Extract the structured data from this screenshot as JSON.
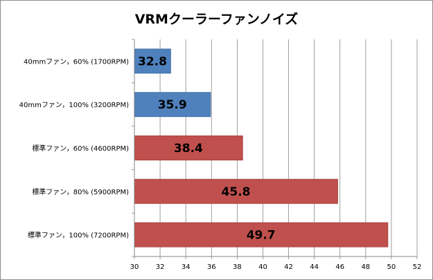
{
  "chart_data": {
    "type": "bar",
    "orientation": "horizontal",
    "title": "VRMクーラーファンノイズ",
    "xlabel": "",
    "ylabel": "",
    "categories": [
      "40mmファン，60% (1700RPM)",
      "40mmファン，100% (3200RPM)",
      "標準ファン，60% (4600RPM)",
      "標準ファン，80% (5900RPM)",
      "標準ファン，100% (7200RPM)"
    ],
    "values": [
      32.8,
      35.9,
      38.4,
      45.8,
      49.7
    ],
    "data_labels": [
      "32.8",
      "35.9",
      "38.4",
      "45.8",
      "49.7"
    ],
    "bar_colors": [
      "#4f81bd",
      "#4f81bd",
      "#c0504d",
      "#c0504d",
      "#c0504d"
    ],
    "xlim": [
      30,
      52
    ],
    "xticks": [
      "30",
      "32",
      "34",
      "36",
      "38",
      "40",
      "42",
      "44",
      "46",
      "48",
      "50",
      "52"
    ],
    "grid": true,
    "legend": "none"
  }
}
